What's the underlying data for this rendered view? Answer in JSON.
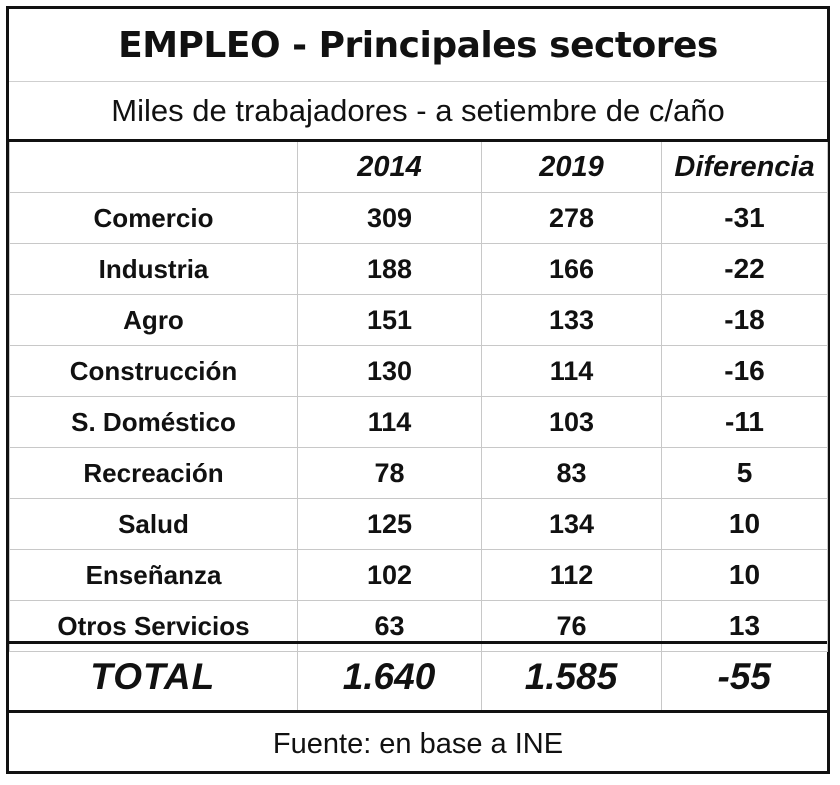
{
  "chart_data": {
    "type": "table",
    "title": "EMPLEO - Principales sectores",
    "subtitle": "Miles de trabajadores - a setiembre de c/año",
    "columns": [
      "",
      "2014",
      "2019",
      "Diferencia"
    ],
    "rows": [
      {
        "sector": "Comercio",
        "y2014": "309",
        "y2019": "278",
        "diff": "-31"
      },
      {
        "sector": "Industria",
        "y2014": "188",
        "y2019": "166",
        "diff": "-22"
      },
      {
        "sector": "Agro",
        "y2014": "151",
        "y2019": "133",
        "diff": "-18"
      },
      {
        "sector": "Construcción",
        "y2014": "130",
        "y2019": "114",
        "diff": "-16"
      },
      {
        "sector": "S. Doméstico",
        "y2014": "114",
        "y2019": "103",
        "diff": "-11"
      },
      {
        "sector": "Recreación",
        "y2014": "78",
        "y2019": "83",
        "diff": "5"
      },
      {
        "sector": "Salud",
        "y2014": "125",
        "y2019": "134",
        "diff": "10"
      },
      {
        "sector": "Enseñanza",
        "y2014": "102",
        "y2019": "112",
        "diff": "10"
      },
      {
        "sector": "Otros Servicios",
        "y2014": "63",
        "y2019": "76",
        "diff": "13"
      }
    ],
    "total": {
      "label": "TOTAL",
      "y2014": "1.640",
      "y2019": "1.585",
      "diff": "-55"
    },
    "source": "Fuente: en base a INE"
  }
}
